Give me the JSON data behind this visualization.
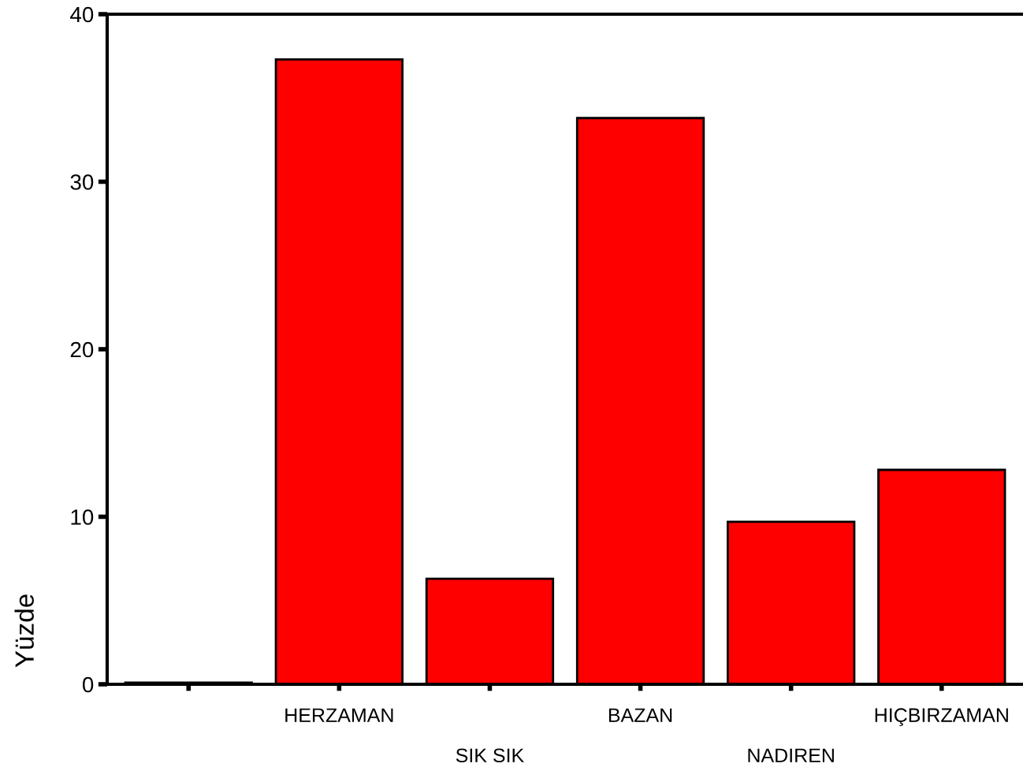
{
  "chart_data": {
    "type": "bar",
    "ylabel": "Yüzde",
    "categories": [
      null,
      "HERZAMAN",
      "SIK SIK",
      "BAZAN",
      "NADIREN",
      "HIÇBIRZAMAN"
    ],
    "values": [
      0.1,
      37.3,
      6.3,
      33.8,
      9.7,
      12.8
    ],
    "color": "#ff0000",
    "ylim": [
      0,
      40
    ],
    "yticks": [
      0,
      10,
      20,
      30,
      40
    ],
    "grid": false,
    "legend": false
  }
}
